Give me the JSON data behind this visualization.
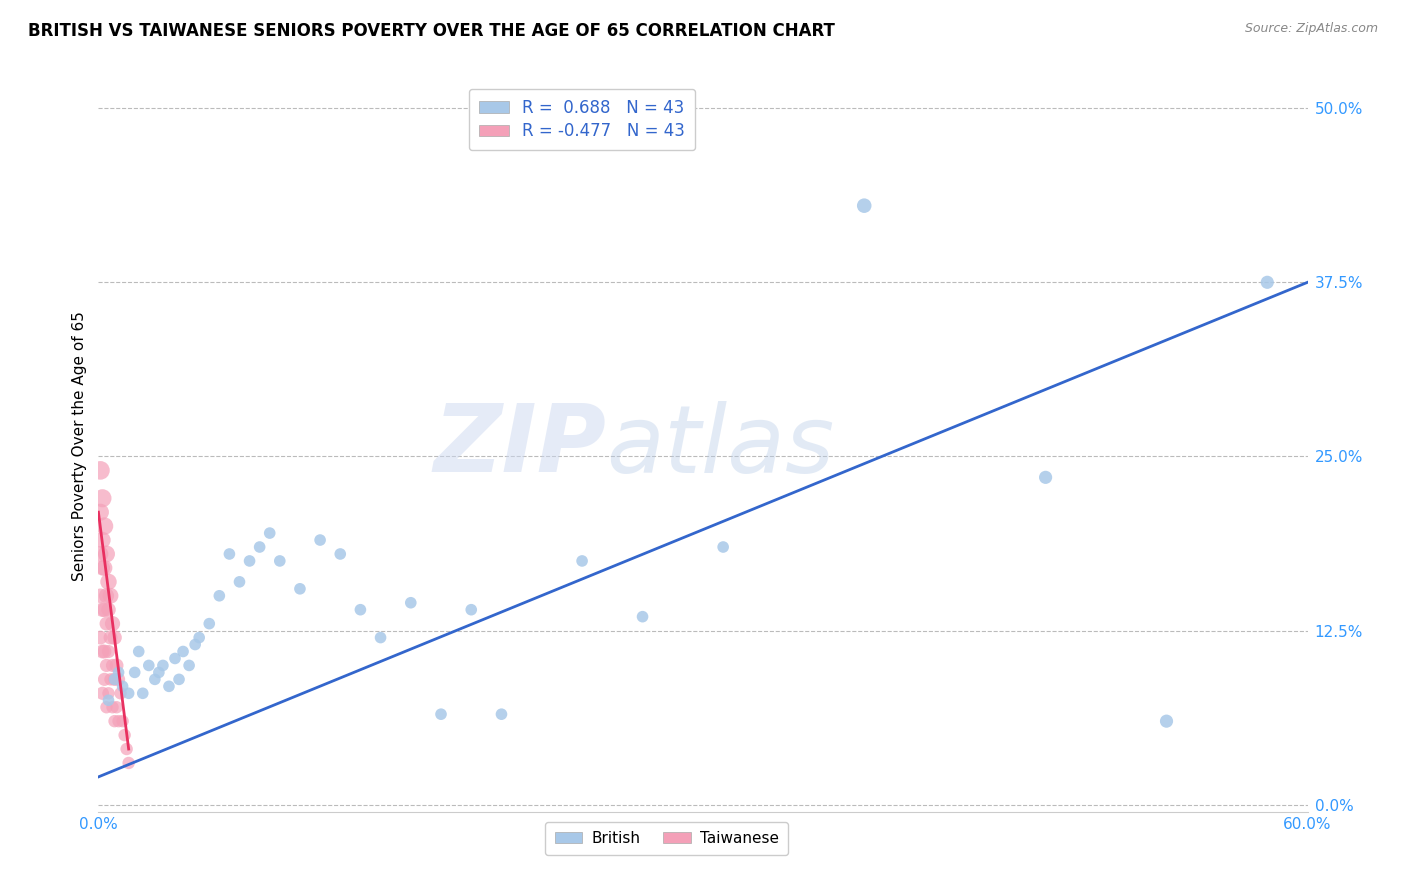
{
  "title": "BRITISH VS TAIWANESE SENIORS POVERTY OVER THE AGE OF 65 CORRELATION CHART",
  "source": "Source: ZipAtlas.com",
  "ylabel": "Seniors Poverty Over the Age of 65",
  "xlim": [
    0.0,
    0.6
  ],
  "ylim": [
    -0.005,
    0.52
  ],
  "yticks": [
    0.0,
    0.125,
    0.25,
    0.375,
    0.5
  ],
  "ytick_labels": [
    "0.0%",
    "12.5%",
    "25.0%",
    "37.5%",
    "50.0%"
  ],
  "xticks": [
    0.0,
    0.1,
    0.2,
    0.3,
    0.4,
    0.5,
    0.6
  ],
  "xtick_labels": [
    "0.0%",
    "",
    "",
    "",
    "",
    "",
    "60.0%"
  ],
  "british_R": 0.688,
  "british_N": 43,
  "taiwanese_R": -0.477,
  "taiwanese_N": 43,
  "british_color": "#a8c8e8",
  "taiwanese_color": "#f4a0b8",
  "british_line_color": "#3366cc",
  "taiwanese_line_color": "#e83060",
  "legend_label_british": "British",
  "legend_label_taiwanese": "Taiwanese",
  "watermark_zip": "ZIP",
  "watermark_atlas": "atlas",
  "title_fontsize": 12,
  "british_x": [
    0.005,
    0.008,
    0.01,
    0.012,
    0.015,
    0.018,
    0.02,
    0.022,
    0.025,
    0.028,
    0.03,
    0.032,
    0.035,
    0.038,
    0.04,
    0.042,
    0.045,
    0.048,
    0.05,
    0.055,
    0.06,
    0.065,
    0.07,
    0.075,
    0.08,
    0.085,
    0.09,
    0.1,
    0.11,
    0.12,
    0.13,
    0.14,
    0.155,
    0.17,
    0.185,
    0.2,
    0.24,
    0.27,
    0.31,
    0.38,
    0.47,
    0.53,
    0.58
  ],
  "british_y": [
    0.075,
    0.09,
    0.095,
    0.085,
    0.08,
    0.095,
    0.11,
    0.08,
    0.1,
    0.09,
    0.095,
    0.1,
    0.085,
    0.105,
    0.09,
    0.11,
    0.1,
    0.115,
    0.12,
    0.13,
    0.15,
    0.18,
    0.16,
    0.175,
    0.185,
    0.195,
    0.175,
    0.155,
    0.19,
    0.18,
    0.14,
    0.12,
    0.145,
    0.065,
    0.14,
    0.065,
    0.175,
    0.135,
    0.185,
    0.43,
    0.235,
    0.06,
    0.375
  ],
  "british_sizes": [
    70,
    70,
    70,
    70,
    70,
    70,
    70,
    70,
    70,
    70,
    70,
    70,
    70,
    70,
    70,
    70,
    70,
    70,
    70,
    70,
    70,
    70,
    70,
    70,
    70,
    70,
    70,
    70,
    70,
    70,
    70,
    70,
    70,
    70,
    70,
    70,
    70,
    70,
    70,
    110,
    90,
    90,
    90
  ],
  "taiwanese_x": [
    0.001,
    0.001,
    0.001,
    0.001,
    0.001,
    0.002,
    0.002,
    0.002,
    0.002,
    0.002,
    0.002,
    0.003,
    0.003,
    0.003,
    0.003,
    0.003,
    0.004,
    0.004,
    0.004,
    0.004,
    0.004,
    0.005,
    0.005,
    0.005,
    0.005,
    0.006,
    0.006,
    0.006,
    0.007,
    0.007,
    0.007,
    0.008,
    0.008,
    0.008,
    0.009,
    0.009,
    0.01,
    0.01,
    0.011,
    0.012,
    0.013,
    0.014,
    0.015
  ],
  "taiwanese_y": [
    0.24,
    0.21,
    0.18,
    0.15,
    0.12,
    0.22,
    0.19,
    0.17,
    0.14,
    0.11,
    0.08,
    0.2,
    0.17,
    0.14,
    0.11,
    0.09,
    0.18,
    0.15,
    0.13,
    0.1,
    0.07,
    0.16,
    0.14,
    0.11,
    0.08,
    0.15,
    0.12,
    0.09,
    0.13,
    0.1,
    0.07,
    0.12,
    0.09,
    0.06,
    0.1,
    0.07,
    0.09,
    0.06,
    0.08,
    0.06,
    0.05,
    0.04,
    0.03
  ],
  "taiwanese_sizes": [
    180,
    150,
    130,
    110,
    100,
    170,
    140,
    120,
    110,
    100,
    90,
    160,
    130,
    110,
    100,
    90,
    150,
    120,
    100,
    90,
    80,
    140,
    110,
    90,
    80,
    130,
    100,
    80,
    120,
    90,
    80,
    110,
    90,
    80,
    100,
    80,
    90,
    80,
    80,
    80,
    80,
    80,
    80
  ],
  "british_line_x0": 0.0,
  "british_line_y0": 0.02,
  "british_line_x1": 0.6,
  "british_line_y1": 0.375,
  "taiwanese_line_x0": 0.0,
  "taiwanese_line_y0": 0.21,
  "taiwanese_line_x1": 0.015,
  "taiwanese_line_y1": 0.04
}
